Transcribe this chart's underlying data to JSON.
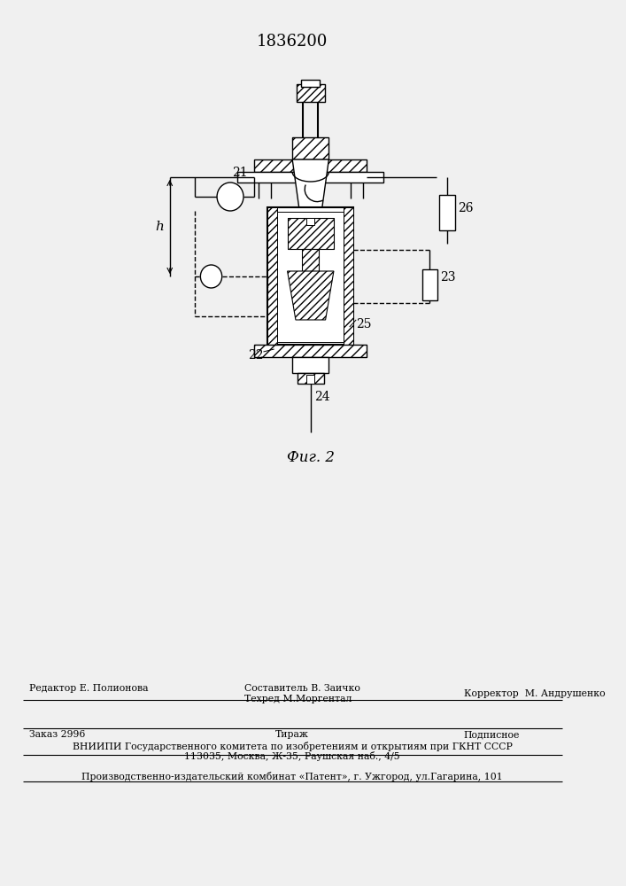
{
  "patent_number": "1836200",
  "bg_color": "#f0f0f0",
  "fig_label": "Фиг. 2",
  "footer_line1_col1": "Редактор Е. Полионова",
  "footer_line1_col2": "Составитель В. Заичко",
  "footer_line2_col2": "Техред М.Моргентал",
  "footer_line1_col3": "Корректор  М. Андрушенко",
  "footer_line3_col1": "Заказ 2996",
  "footer_line3_col2": "Тираж",
  "footer_line3_col3": "Подписное",
  "footer_line4": "ВНИИПИ Государственного комитета по изобретениям и открытиям при ГКНТ СССР",
  "footer_line5": "113035, Москва, Ж-35, Раушская наб., 4/5",
  "footer_line6": "Производственно-издательский комбинат «Патент», г. Ужгород, ул.Гагарина, 101"
}
